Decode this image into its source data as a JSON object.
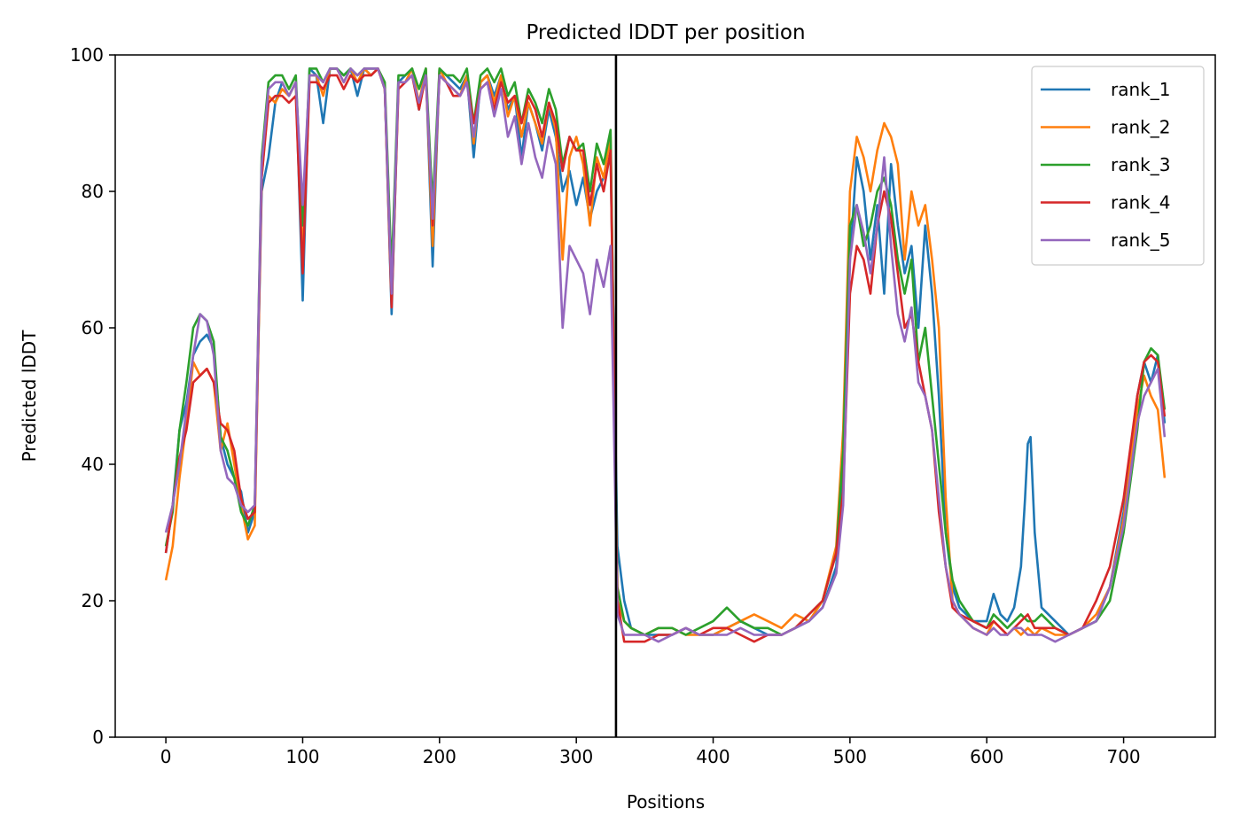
{
  "chart_data": {
    "type": "line",
    "title": "Predicted lDDT per position",
    "xlabel": "Positions",
    "ylabel": "Predicted lDDT",
    "xlim": [
      -37,
      767
    ],
    "ylim": [
      0,
      100
    ],
    "xticks": [
      0,
      100,
      200,
      300,
      400,
      500,
      600,
      700
    ],
    "yticks": [
      0,
      20,
      40,
      60,
      80,
      100
    ],
    "grid": false,
    "legend_position": "top-right",
    "vline": {
      "x": 329,
      "color": "#000000"
    },
    "series": [
      {
        "name": "rank_1",
        "color": "#1f77b4",
        "x": [
          0,
          5,
          10,
          15,
          20,
          25,
          30,
          35,
          40,
          45,
          50,
          55,
          60,
          65,
          70,
          75,
          80,
          85,
          90,
          95,
          100,
          105,
          110,
          115,
          120,
          125,
          130,
          135,
          140,
          145,
          150,
          155,
          160,
          165,
          170,
          175,
          180,
          185,
          190,
          195,
          200,
          205,
          210,
          215,
          220,
          225,
          230,
          235,
          240,
          245,
          250,
          255,
          260,
          265,
          270,
          275,
          280,
          285,
          290,
          295,
          300,
          305,
          310,
          315,
          320,
          325,
          330,
          335,
          340,
          350,
          360,
          370,
          380,
          390,
          400,
          410,
          420,
          430,
          440,
          450,
          460,
          470,
          480,
          490,
          495,
          500,
          505,
          510,
          515,
          520,
          525,
          530,
          535,
          540,
          545,
          550,
          555,
          560,
          565,
          570,
          575,
          580,
          590,
          600,
          605,
          610,
          615,
          620,
          625,
          628,
          630,
          632,
          635,
          640,
          650,
          660,
          670,
          680,
          690,
          700,
          710,
          715,
          720,
          725,
          730
        ],
        "y": [
          27,
          34,
          45,
          49,
          56,
          58,
          59,
          57,
          44,
          40,
          38,
          36,
          30,
          33,
          80,
          85,
          93,
          96,
          94,
          96,
          64,
          98,
          97,
          90,
          98,
          98,
          97,
          98,
          94,
          98,
          97,
          98,
          95,
          62,
          96,
          97,
          98,
          92,
          98,
          69,
          98,
          97,
          96,
          95,
          97,
          85,
          96,
          97,
          94,
          97,
          92,
          94,
          85,
          93,
          90,
          86,
          92,
          88,
          80,
          83,
          78,
          82,
          76,
          80,
          82,
          85,
          28,
          20,
          16,
          15,
          15,
          15,
          16,
          15,
          15,
          16,
          17,
          16,
          15,
          15,
          16,
          17,
          19,
          25,
          40,
          70,
          85,
          80,
          70,
          78,
          65,
          84,
          75,
          68,
          72,
          60,
          75,
          65,
          50,
          30,
          22,
          19,
          17,
          17,
          21,
          18,
          17,
          19,
          25,
          35,
          43,
          44,
          30,
          19,
          17,
          15,
          16,
          17,
          22,
          33,
          50,
          55,
          52,
          56,
          46
        ]
      },
      {
        "name": "rank_2",
        "color": "#ff7f0e",
        "x": [
          0,
          5,
          10,
          15,
          20,
          25,
          30,
          35,
          40,
          45,
          50,
          55,
          60,
          65,
          70,
          75,
          80,
          85,
          90,
          95,
          100,
          105,
          110,
          115,
          120,
          125,
          130,
          135,
          140,
          145,
          150,
          155,
          160,
          165,
          170,
          175,
          180,
          185,
          190,
          195,
          200,
          205,
          210,
          215,
          220,
          225,
          230,
          235,
          240,
          245,
          250,
          255,
          260,
          265,
          270,
          275,
          280,
          285,
          290,
          295,
          300,
          305,
          310,
          315,
          320,
          325,
          330,
          335,
          340,
          350,
          360,
          370,
          380,
          390,
          400,
          410,
          420,
          430,
          440,
          450,
          460,
          470,
          480,
          490,
          495,
          500,
          505,
          510,
          515,
          520,
          525,
          530,
          535,
          540,
          545,
          550,
          555,
          560,
          565,
          570,
          575,
          580,
          590,
          600,
          605,
          610,
          615,
          620,
          625,
          630,
          635,
          640,
          650,
          660,
          670,
          680,
          690,
          700,
          710,
          715,
          720,
          725,
          730
        ],
        "y": [
          23,
          28,
          38,
          46,
          55,
          53,
          54,
          52,
          42,
          46,
          40,
          34,
          29,
          31,
          82,
          94,
          93,
          95,
          94,
          96,
          70,
          97,
          97,
          94,
          98,
          98,
          96,
          98,
          96,
          98,
          97,
          98,
          95,
          64,
          96,
          96,
          98,
          93,
          98,
          72,
          98,
          96,
          95,
          94,
          97,
          87,
          96,
          97,
          93,
          97,
          91,
          94,
          88,
          93,
          90,
          87,
          93,
          89,
          70,
          85,
          88,
          84,
          75,
          85,
          82,
          88,
          20,
          17,
          16,
          15,
          16,
          16,
          15,
          15,
          15,
          16,
          17,
          18,
          17,
          16,
          18,
          17,
          20,
          28,
          45,
          80,
          88,
          85,
          80,
          86,
          90,
          88,
          84,
          70,
          80,
          75,
          78,
          70,
          60,
          35,
          20,
          18,
          16,
          15,
          17,
          16,
          15,
          16,
          15,
          16,
          15,
          16,
          15,
          15,
          16,
          18,
          22,
          32,
          48,
          53,
          50,
          48,
          38
        ]
      },
      {
        "name": "rank_3",
        "color": "#2ca02c",
        "x": [
          0,
          5,
          10,
          15,
          20,
          25,
          30,
          35,
          40,
          45,
          50,
          55,
          60,
          65,
          70,
          75,
          80,
          85,
          90,
          95,
          100,
          105,
          110,
          115,
          120,
          125,
          130,
          135,
          140,
          145,
          150,
          155,
          160,
          165,
          170,
          175,
          180,
          185,
          190,
          195,
          200,
          205,
          210,
          215,
          220,
          225,
          230,
          235,
          240,
          245,
          250,
          255,
          260,
          265,
          270,
          275,
          280,
          285,
          290,
          295,
          300,
          305,
          310,
          315,
          320,
          325,
          330,
          335,
          340,
          350,
          360,
          370,
          380,
          390,
          400,
          410,
          420,
          430,
          440,
          450,
          460,
          470,
          480,
          490,
          495,
          500,
          505,
          510,
          515,
          520,
          525,
          530,
          535,
          540,
          545,
          550,
          555,
          560,
          565,
          570,
          575,
          580,
          590,
          600,
          605,
          610,
          615,
          620,
          625,
          630,
          635,
          640,
          650,
          660,
          670,
          680,
          690,
          700,
          710,
          715,
          720,
          725,
          730
        ],
        "y": [
          28,
          33,
          45,
          52,
          60,
          62,
          61,
          58,
          44,
          42,
          38,
          33,
          31,
          34,
          85,
          96,
          97,
          97,
          95,
          97,
          75,
          98,
          98,
          96,
          98,
          98,
          97,
          98,
          97,
          98,
          98,
          98,
          96,
          68,
          97,
          97,
          98,
          95,
          98,
          78,
          98,
          97,
          97,
          96,
          98,
          90,
          97,
          98,
          96,
          98,
          94,
          96,
          90,
          95,
          93,
          90,
          95,
          92,
          84,
          88,
          86,
          87,
          80,
          87,
          84,
          89,
          22,
          17,
          16,
          15,
          16,
          16,
          15,
          16,
          17,
          19,
          17,
          16,
          16,
          15,
          16,
          18,
          20,
          27,
          42,
          75,
          78,
          72,
          75,
          80,
          82,
          78,
          70,
          65,
          70,
          55,
          60,
          50,
          40,
          30,
          23,
          20,
          17,
          16,
          18,
          17,
          16,
          17,
          18,
          17,
          17,
          18,
          16,
          15,
          16,
          17,
          20,
          30,
          45,
          55,
          57,
          56,
          48
        ]
      },
      {
        "name": "rank_4",
        "color": "#d62728",
        "x": [
          0,
          5,
          10,
          15,
          20,
          25,
          30,
          35,
          40,
          45,
          50,
          55,
          60,
          65,
          70,
          75,
          80,
          85,
          90,
          95,
          100,
          105,
          110,
          115,
          120,
          125,
          130,
          135,
          140,
          145,
          150,
          155,
          160,
          165,
          170,
          175,
          180,
          185,
          190,
          195,
          200,
          205,
          210,
          215,
          220,
          225,
          230,
          235,
          240,
          245,
          250,
          255,
          260,
          265,
          270,
          275,
          280,
          285,
          290,
          295,
          300,
          305,
          310,
          315,
          320,
          325,
          330,
          335,
          340,
          350,
          360,
          370,
          380,
          390,
          400,
          410,
          420,
          430,
          440,
          450,
          460,
          470,
          480,
          490,
          495,
          500,
          505,
          510,
          515,
          520,
          525,
          530,
          535,
          540,
          545,
          550,
          555,
          560,
          565,
          570,
          575,
          580,
          590,
          600,
          605,
          610,
          615,
          620,
          625,
          630,
          635,
          640,
          650,
          660,
          670,
          680,
          690,
          700,
          710,
          715,
          720,
          725,
          730
        ],
        "y": [
          27,
          34,
          41,
          45,
          52,
          53,
          54,
          52,
          46,
          45,
          42,
          35,
          32,
          33,
          82,
          93,
          94,
          94,
          93,
          94,
          68,
          96,
          96,
          95,
          97,
          97,
          95,
          97,
          96,
          97,
          97,
          98,
          95,
          63,
          95,
          96,
          97,
          92,
          97,
          75,
          97,
          96,
          94,
          94,
          96,
          90,
          95,
          96,
          92,
          96,
          93,
          94,
          90,
          94,
          92,
          88,
          93,
          90,
          83,
          88,
          86,
          86,
          78,
          84,
          80,
          86,
          20,
          14,
          14,
          14,
          15,
          15,
          16,
          15,
          16,
          16,
          15,
          14,
          15,
          15,
          16,
          18,
          20,
          27,
          36,
          65,
          72,
          70,
          65,
          75,
          80,
          76,
          68,
          60,
          62,
          55,
          50,
          45,
          33,
          25,
          19,
          18,
          17,
          16,
          17,
          16,
          15,
          16,
          17,
          18,
          16,
          16,
          16,
          15,
          16,
          20,
          25,
          35,
          50,
          55,
          56,
          55,
          47
        ]
      },
      {
        "name": "rank_5",
        "color": "#9467bd",
        "x": [
          0,
          5,
          10,
          15,
          20,
          25,
          30,
          35,
          40,
          45,
          50,
          55,
          60,
          65,
          70,
          75,
          80,
          85,
          90,
          95,
          100,
          105,
          110,
          115,
          120,
          125,
          130,
          135,
          140,
          145,
          150,
          155,
          160,
          165,
          170,
          175,
          180,
          185,
          190,
          195,
          200,
          205,
          210,
          215,
          220,
          225,
          230,
          235,
          240,
          245,
          250,
          255,
          260,
          265,
          270,
          275,
          280,
          285,
          290,
          295,
          300,
          305,
          310,
          315,
          320,
          325,
          330,
          335,
          340,
          350,
          360,
          370,
          380,
          390,
          400,
          410,
          420,
          430,
          440,
          450,
          460,
          470,
          480,
          490,
          495,
          500,
          505,
          510,
          515,
          520,
          525,
          530,
          535,
          540,
          545,
          550,
          555,
          560,
          565,
          570,
          575,
          580,
          590,
          600,
          605,
          610,
          615,
          620,
          625,
          630,
          635,
          640,
          650,
          660,
          670,
          680,
          690,
          700,
          710,
          715,
          720,
          725,
          730
        ],
        "y": [
          30,
          34,
          40,
          48,
          56,
          62,
          61,
          56,
          42,
          38,
          37,
          34,
          33,
          34,
          84,
          95,
          96,
          96,
          94,
          96,
          78,
          97,
          97,
          96,
          98,
          98,
          96,
          98,
          97,
          98,
          98,
          98,
          95,
          65,
          96,
          96,
          97,
          93,
          97,
          76,
          97,
          96,
          95,
          94,
          96,
          88,
          95,
          96,
          91,
          95,
          88,
          91,
          84,
          90,
          85,
          82,
          88,
          84,
          60,
          72,
          70,
          68,
          62,
          70,
          66,
          72,
          18,
          15,
          15,
          15,
          14,
          15,
          16,
          15,
          15,
          15,
          16,
          15,
          15,
          15,
          16,
          17,
          19,
          24,
          34,
          70,
          78,
          74,
          68,
          75,
          85,
          72,
          62,
          58,
          63,
          52,
          50,
          45,
          35,
          25,
          20,
          18,
          16,
          15,
          16,
          15,
          15,
          16,
          16,
          15,
          15,
          15,
          14,
          15,
          16,
          17,
          22,
          31,
          46,
          50,
          52,
          54,
          44
        ]
      }
    ]
  }
}
